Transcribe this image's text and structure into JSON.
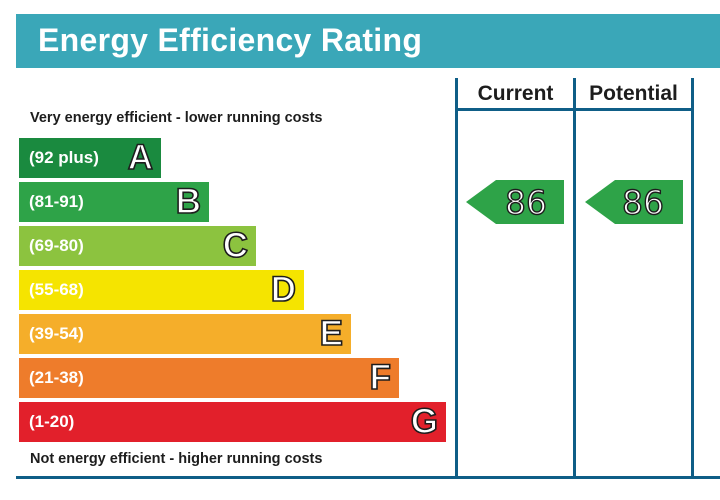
{
  "title": "Energy Efficiency Rating",
  "columns": {
    "current": "Current",
    "potential": "Potential"
  },
  "captions": {
    "top": "Very energy efficient - lower running costs",
    "bottom": "Not energy efficient - higher running costs"
  },
  "chart_data": {
    "type": "bar",
    "title": "Energy Efficiency Rating",
    "categories": [
      "A",
      "B",
      "C",
      "D",
      "E",
      "F",
      "G"
    ],
    "bands": [
      {
        "letter": "A",
        "range": "(92 plus)",
        "color": "#1a8a3f"
      },
      {
        "letter": "B",
        "range": "(81-91)",
        "color": "#2ea348"
      },
      {
        "letter": "C",
        "range": "(69-80)",
        "color": "#8cc33f"
      },
      {
        "letter": "D",
        "range": "(55-68)",
        "color": "#f5e400"
      },
      {
        "letter": "E",
        "range": "(39-54)",
        "color": "#f5ae2a"
      },
      {
        "letter": "F",
        "range": "(21-38)",
        "color": "#ee7c2b"
      },
      {
        "letter": "G",
        "range": "(1-20)",
        "color": "#e2202b"
      }
    ],
    "ratings": {
      "current": {
        "value": "86",
        "band": "B",
        "color": "#2ea348"
      },
      "potential": {
        "value": "86",
        "band": "B",
        "color": "#2ea348"
      }
    }
  }
}
